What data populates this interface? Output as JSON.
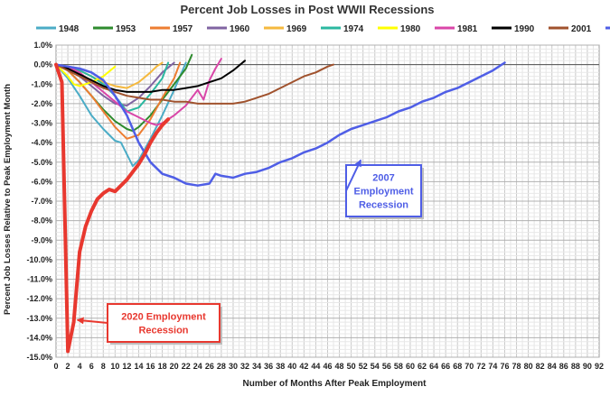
{
  "chart_data": {
    "type": "line",
    "title": "Percent Job Losses in Post WWII Recessions",
    "xlabel": "Number of Months After Peak Employment",
    "ylabel": "Percent Job Losses Relative to Peak Employment Month",
    "xlim": [
      0,
      92
    ],
    "ylim": [
      -15,
      1
    ],
    "grid": true,
    "legend_placement": "top",
    "x_ticks": [
      0,
      2,
      4,
      6,
      8,
      10,
      12,
      14,
      16,
      18,
      20,
      22,
      24,
      26,
      28,
      30,
      32,
      34,
      36,
      38,
      40,
      42,
      44,
      46,
      48,
      50,
      52,
      54,
      56,
      58,
      60,
      62,
      64,
      66,
      68,
      70,
      72,
      74,
      76,
      78,
      80,
      82,
      84,
      86,
      88,
      90,
      92
    ],
    "y_ticks": [
      "1.0%",
      "0.0%",
      "-1.0%",
      "-2.0%",
      "-3.0%",
      "-4.0%",
      "-5.0%",
      "-6.0%",
      "-7.0%",
      "-8.0%",
      "-9.0%",
      "-10.0%",
      "-11.0%",
      "-12.0%",
      "-13.0%",
      "-14.0%",
      "-15.0%"
    ],
    "series": [
      {
        "name": "1948",
        "color": "#4bacc6",
        "width": 2,
        "x": [
          0,
          2,
          4,
          6,
          8,
          10,
          11,
          12,
          13,
          14,
          16,
          18,
          20,
          22
        ],
        "y": [
          0,
          -0.7,
          -1.6,
          -2.6,
          -3.3,
          -3.9,
          -4.0,
          -4.6,
          -5.2,
          -4.9,
          -3.8,
          -2.6,
          -1.3,
          0.1
        ]
      },
      {
        "name": "1953",
        "color": "#2e8b2e",
        "width": 2,
        "x": [
          0,
          2,
          4,
          6,
          8,
          10,
          12,
          13,
          14,
          16,
          18,
          20,
          22,
          23
        ],
        "y": [
          0,
          -0.3,
          -0.9,
          -1.6,
          -2.3,
          -2.9,
          -3.3,
          -3.4,
          -3.2,
          -2.6,
          -1.8,
          -1.0,
          -0.2,
          0.5
        ]
      },
      {
        "name": "1957",
        "color": "#ed7d31",
        "width": 2,
        "x": [
          0,
          2,
          4,
          6,
          8,
          10,
          12,
          14,
          16,
          18,
          20,
          21
        ],
        "y": [
          0,
          -0.3,
          -0.9,
          -1.6,
          -2.4,
          -3.2,
          -3.8,
          -3.6,
          -2.8,
          -1.7,
          -0.7,
          0.1
        ]
      },
      {
        "name": "1960",
        "color": "#8064a2",
        "width": 2,
        "x": [
          0,
          2,
          4,
          6,
          8,
          10,
          12,
          14,
          16,
          18,
          20
        ],
        "y": [
          0,
          -0.2,
          -0.6,
          -1.1,
          -1.6,
          -2.0,
          -2.1,
          -1.7,
          -1.1,
          -0.4,
          0.1
        ]
      },
      {
        "name": "1969",
        "color": "#f5b93e",
        "width": 2,
        "x": [
          0,
          2,
          4,
          6,
          8,
          10,
          12,
          14,
          16,
          17,
          18
        ],
        "y": [
          0,
          -0.1,
          -0.3,
          -0.6,
          -0.9,
          -1.1,
          -1.2,
          -0.9,
          -0.4,
          -0.1,
          0.1
        ]
      },
      {
        "name": "1974",
        "color": "#2bb8a0",
        "width": 2,
        "x": [
          0,
          2,
          4,
          6,
          8,
          10,
          12,
          14,
          16,
          18,
          19
        ],
        "y": [
          0,
          -0.1,
          -0.3,
          -0.6,
          -1.0,
          -1.6,
          -2.4,
          -2.2,
          -1.5,
          -0.7,
          0.1
        ]
      },
      {
        "name": "1980",
        "color": "#ffff00",
        "width": 2,
        "x": [
          0,
          2,
          3,
          4,
          6,
          8,
          10
        ],
        "y": [
          0,
          -0.6,
          -1.0,
          -1.1,
          -0.9,
          -0.6,
          -0.1
        ]
      },
      {
        "name": "1981",
        "color": "#d946a8",
        "width": 2,
        "x": [
          0,
          2,
          4,
          6,
          8,
          10,
          12,
          14,
          16,
          17,
          18,
          20,
          22,
          24,
          25,
          26,
          27,
          28
        ],
        "y": [
          0,
          -0.1,
          -0.4,
          -0.9,
          -1.4,
          -1.9,
          -2.4,
          -2.7,
          -3.0,
          -3.1,
          -3.0,
          -2.6,
          -2.1,
          -1.3,
          -1.8,
          -0.8,
          -0.2,
          0.3
        ]
      },
      {
        "name": "1990",
        "color": "#000000",
        "width": 2,
        "x": [
          0,
          2,
          4,
          6,
          8,
          10,
          12,
          14,
          16,
          18,
          20,
          22,
          24,
          26,
          28,
          30,
          32
        ],
        "y": [
          0,
          -0.2,
          -0.5,
          -0.8,
          -1.1,
          -1.3,
          -1.4,
          -1.4,
          -1.4,
          -1.3,
          -1.3,
          -1.2,
          -1.1,
          -0.9,
          -0.7,
          -0.3,
          0.2
        ]
      },
      {
        "name": "2001",
        "color": "#a0522d",
        "width": 2,
        "x": [
          0,
          2,
          4,
          6,
          8,
          10,
          12,
          14,
          16,
          18,
          20,
          22,
          24,
          26,
          28,
          30,
          32,
          34,
          36,
          38,
          40,
          42,
          44,
          46,
          47
        ],
        "y": [
          0,
          -0.3,
          -0.6,
          -0.9,
          -1.2,
          -1.4,
          -1.6,
          -1.7,
          -1.8,
          -1.8,
          -1.9,
          -1.9,
          -2.0,
          -2.0,
          -2.0,
          -2.0,
          -1.9,
          -1.7,
          -1.5,
          -1.2,
          -0.9,
          -0.6,
          -0.4,
          -0.1,
          0.0
        ]
      },
      {
        "name": "2007",
        "color": "#4f5ee6",
        "width": 2.5,
        "x": [
          0,
          2,
          4,
          6,
          8,
          10,
          12,
          14,
          16,
          18,
          20,
          22,
          24,
          26,
          27,
          28,
          30,
          32,
          34,
          36,
          38,
          40,
          42,
          44,
          46,
          48,
          50,
          52,
          54,
          56,
          58,
          60,
          62,
          64,
          66,
          68,
          70,
          72,
          74,
          76
        ],
        "y": [
          0,
          -0.1,
          -0.2,
          -0.4,
          -0.8,
          -1.6,
          -2.6,
          -4.0,
          -5.0,
          -5.6,
          -5.8,
          -6.1,
          -6.2,
          -6.1,
          -5.6,
          -5.7,
          -5.8,
          -5.6,
          -5.5,
          -5.3,
          -5.0,
          -4.8,
          -4.5,
          -4.3,
          -4.0,
          -3.6,
          -3.3,
          -3.1,
          -2.9,
          -2.7,
          -2.4,
          -2.2,
          -1.9,
          -1.7,
          -1.4,
          -1.2,
          -0.9,
          -0.6,
          -0.3,
          0.1
        ]
      },
      {
        "name": "2020",
        "color": "#e8382f",
        "width": 4,
        "x": [
          0,
          1,
          2,
          3,
          4,
          5,
          6,
          7,
          8,
          9,
          10,
          11,
          12,
          13,
          14,
          15,
          16,
          17,
          18,
          19
        ],
        "y": [
          0,
          -0.9,
          -14.7,
          -13.2,
          -9.6,
          -8.3,
          -7.5,
          -6.9,
          -6.6,
          -6.4,
          -6.5,
          -6.2,
          -5.9,
          -5.5,
          -5.1,
          -4.6,
          -4.0,
          -3.5,
          -3.1,
          -2.8
        ]
      }
    ],
    "annotations": [
      {
        "id": "ann-2007",
        "text_lines": [
          "2007",
          "Employment",
          "Recession"
        ],
        "color": "#4f5ee6",
        "arrow_to": {
          "x": 51,
          "y": -4.8
        }
      },
      {
        "id": "ann-2020",
        "text_lines": [
          "2020 Employment",
          "Recession"
        ],
        "color": "#e8382f",
        "arrow_to": {
          "x": 3,
          "y": -13.0
        }
      }
    ]
  }
}
